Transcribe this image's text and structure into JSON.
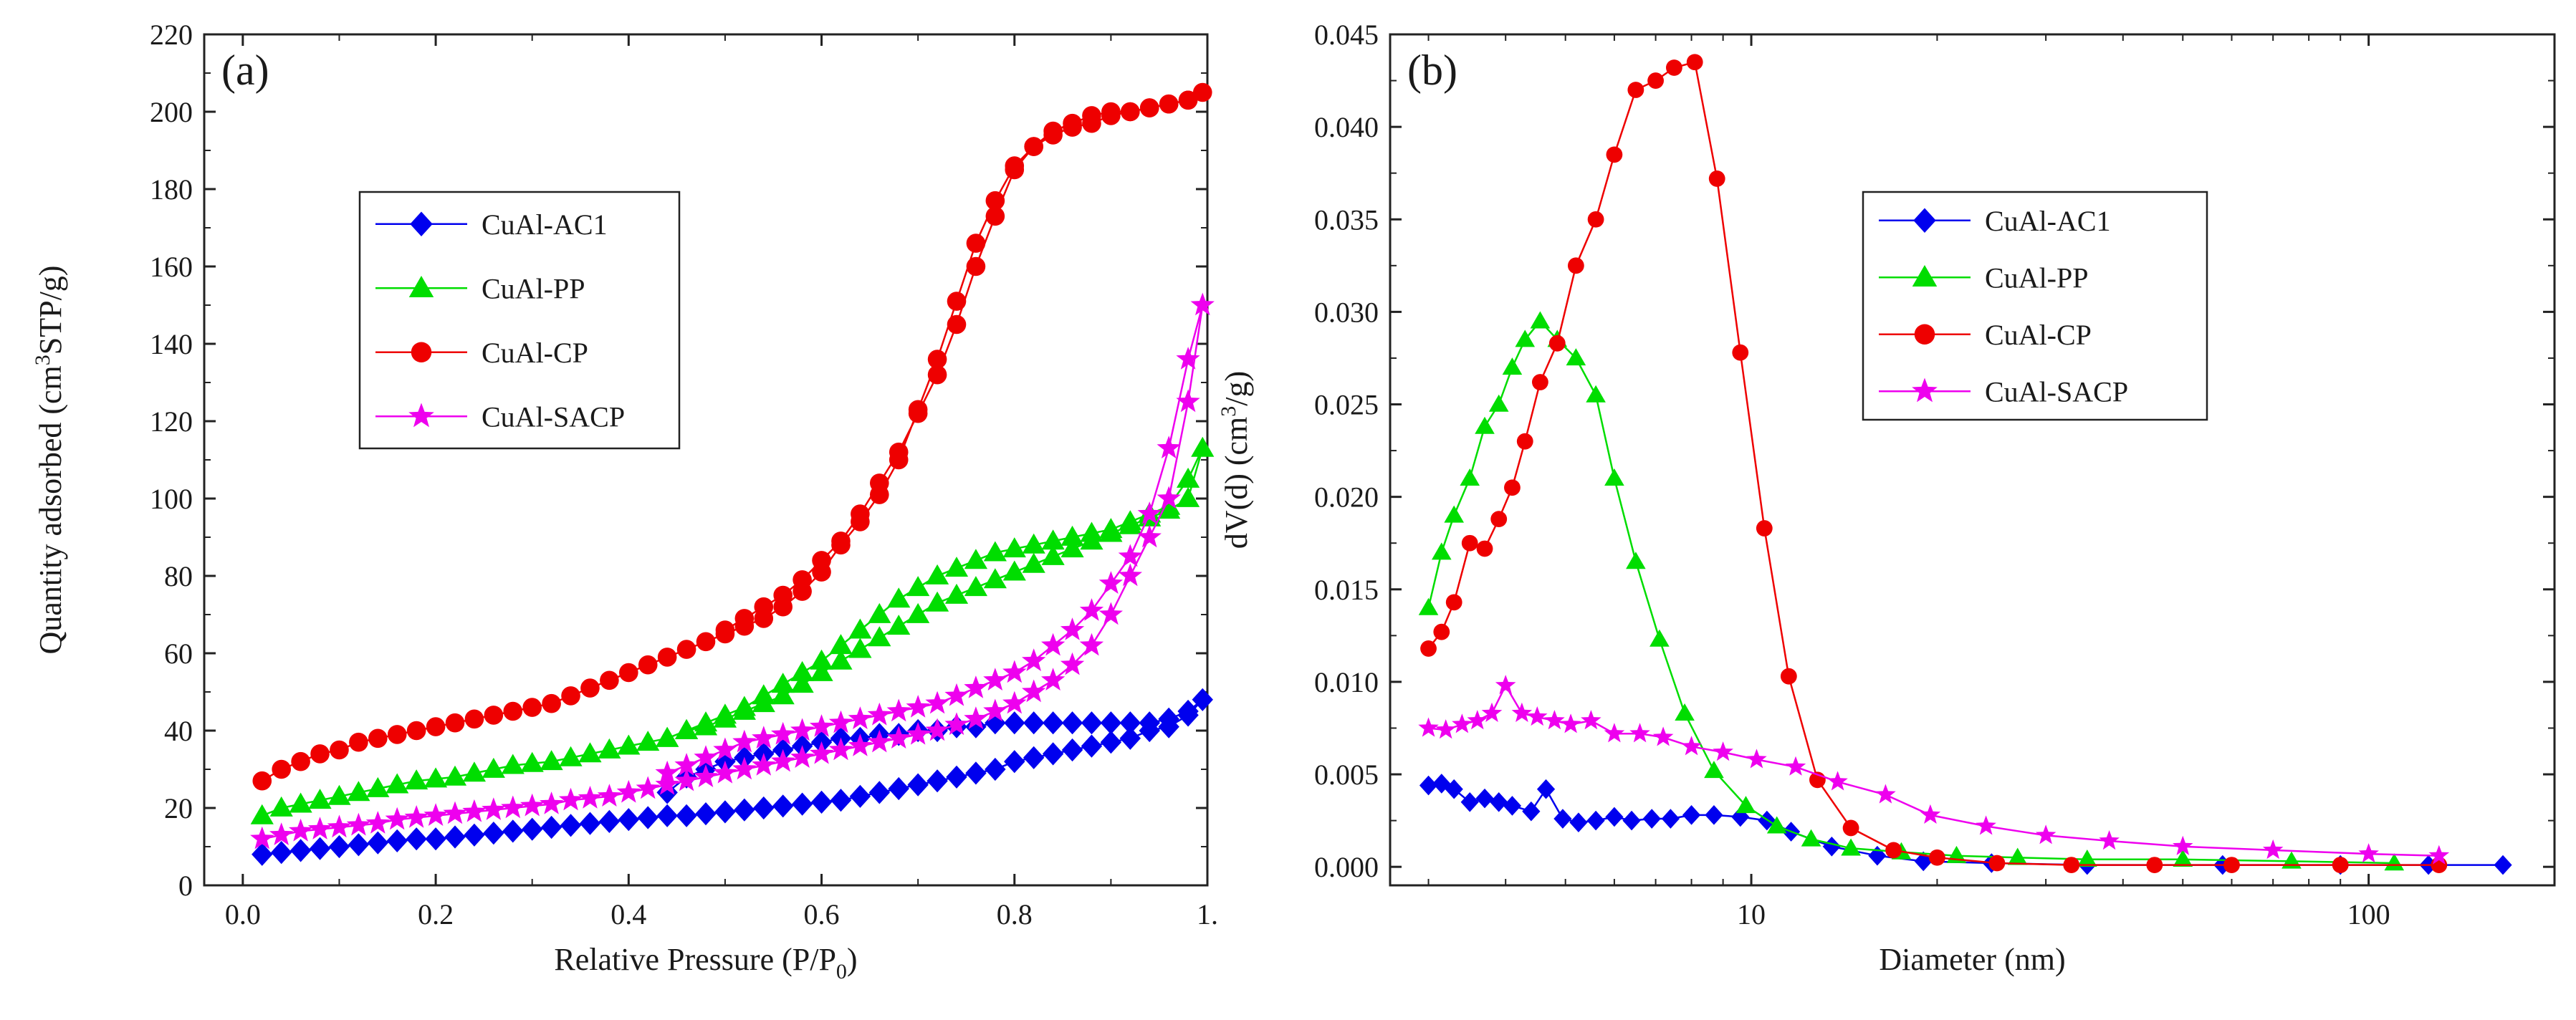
{
  "chart_data": [
    {
      "type": "scatter",
      "panel_label": "(a)",
      "title": "",
      "xlabel": "Relative Pressure (P/P",
      "xlabel_sub": "0",
      "xlabel_end": ")",
      "ylabel": "Quantity adsorbed (cm",
      "ylabel_sup": "3",
      "ylabel_end": "STP/g)",
      "xlim": [
        -0.04,
        1.0
      ],
      "ylim": [
        0,
        220
      ],
      "xticks": [
        0.0,
        0.2,
        0.4,
        0.6,
        0.8,
        1.0
      ],
      "xtick_labels": [
        "0.0",
        "0.2",
        "0.4",
        "0.6",
        "0.8",
        "1."
      ],
      "yticks": [
        0,
        20,
        40,
        60,
        80,
        100,
        120,
        140,
        160,
        180,
        200,
        220
      ],
      "ytick_labels": [
        "0",
        "20",
        "40",
        "60",
        "80",
        "100",
        "120",
        "140",
        "160",
        "180",
        "200",
        "220"
      ],
      "legend_position": "upper-left",
      "series": [
        {
          "name": "CuAl-AC1",
          "color": "#0000ee",
          "marker": "diamond",
          "x": [
            0.02,
            0.04,
            0.06,
            0.08,
            0.1,
            0.12,
            0.14,
            0.16,
            0.18,
            0.2,
            0.22,
            0.24,
            0.26,
            0.28,
            0.3,
            0.32,
            0.34,
            0.36,
            0.38,
            0.4,
            0.42,
            0.44,
            0.46,
            0.48,
            0.5,
            0.52,
            0.54,
            0.56,
            0.58,
            0.6,
            0.62,
            0.64,
            0.66,
            0.68,
            0.7,
            0.72,
            0.74,
            0.76,
            0.78,
            0.8,
            0.82,
            0.84,
            0.86,
            0.88,
            0.9,
            0.92,
            0.94,
            0.96,
            0.98,
            0.995,
            0.98,
            0.96,
            0.94,
            0.92,
            0.9,
            0.88,
            0.86,
            0.84,
            0.82,
            0.8,
            0.78,
            0.76,
            0.74,
            0.72,
            0.7,
            0.68,
            0.66,
            0.64,
            0.62,
            0.6,
            0.58,
            0.56,
            0.54,
            0.52,
            0.5,
            0.48,
            0.46,
            0.44
          ],
          "y": [
            8,
            8.5,
            9,
            9.5,
            10,
            10.5,
            11,
            11.5,
            12,
            12,
            12.5,
            13,
            13.5,
            14,
            14.5,
            15,
            15.5,
            16,
            16.5,
            17,
            17.5,
            18,
            18,
            18.5,
            19,
            19.5,
            20,
            20.5,
            21,
            21.5,
            22,
            23,
            24,
            25,
            26,
            27,
            28,
            29,
            30,
            32,
            33,
            34,
            35,
            36,
            37,
            38,
            40,
            41,
            44,
            48,
            45,
            43,
            42,
            42,
            42,
            42,
            42,
            42,
            42,
            42,
            42,
            41,
            41,
            40,
            40,
            39,
            39,
            38,
            38,
            37,
            36,
            35,
            34,
            33,
            32,
            30,
            28,
            24
          ]
        },
        {
          "name": "CuAl-PP",
          "color": "#00dd00",
          "marker": "triangle",
          "x": [
            0.02,
            0.04,
            0.06,
            0.08,
            0.1,
            0.12,
            0.14,
            0.16,
            0.18,
            0.2,
            0.22,
            0.24,
            0.26,
            0.28,
            0.3,
            0.32,
            0.34,
            0.36,
            0.38,
            0.4,
            0.42,
            0.44,
            0.46,
            0.48,
            0.5,
            0.52,
            0.54,
            0.56,
            0.58,
            0.6,
            0.62,
            0.64,
            0.66,
            0.68,
            0.7,
            0.72,
            0.74,
            0.76,
            0.78,
            0.8,
            0.82,
            0.84,
            0.86,
            0.88,
            0.9,
            0.92,
            0.94,
            0.96,
            0.98,
            0.995,
            0.98,
            0.96,
            0.94,
            0.92,
            0.9,
            0.88,
            0.86,
            0.84,
            0.82,
            0.8,
            0.78,
            0.76,
            0.74,
            0.72,
            0.7,
            0.68,
            0.66,
            0.64,
            0.62,
            0.6,
            0.58,
            0.56,
            0.54,
            0.52,
            0.5,
            0.48,
            0.46,
            0.44
          ],
          "y": [
            18,
            20,
            21,
            22,
            23,
            24,
            25,
            26,
            27,
            27.5,
            28,
            29,
            30,
            31,
            31.5,
            32,
            33,
            34,
            35,
            36,
            37,
            38,
            40,
            41,
            43,
            45,
            47,
            49,
            52,
            55,
            58,
            61,
            64,
            67,
            70,
            73,
            75,
            77,
            79,
            81,
            83,
            85,
            87,
            89,
            91,
            93,
            95,
            97,
            100,
            113,
            105,
            98,
            96,
            94,
            92,
            91,
            90,
            89,
            88,
            87,
            86,
            84,
            82,
            80,
            77,
            74,
            70,
            66,
            62,
            58,
            55,
            52,
            49,
            46,
            44,
            42,
            40,
            38
          ]
        },
        {
          "name": "CuAl-CP",
          "color": "#ee0000",
          "marker": "circle",
          "x": [
            0.02,
            0.04,
            0.06,
            0.08,
            0.1,
            0.12,
            0.14,
            0.16,
            0.18,
            0.2,
            0.22,
            0.24,
            0.26,
            0.28,
            0.3,
            0.32,
            0.34,
            0.36,
            0.38,
            0.4,
            0.42,
            0.44,
            0.46,
            0.48,
            0.5,
            0.52,
            0.54,
            0.56,
            0.58,
            0.6,
            0.62,
            0.64,
            0.66,
            0.68,
            0.7,
            0.72,
            0.74,
            0.76,
            0.78,
            0.8,
            0.82,
            0.84,
            0.86,
            0.88,
            0.9,
            0.92,
            0.94,
            0.96,
            0.98,
            0.995,
            0.98,
            0.96,
            0.94,
            0.92,
            0.9,
            0.88,
            0.86,
            0.84,
            0.82,
            0.8,
            0.78,
            0.76,
            0.74,
            0.72,
            0.7,
            0.68,
            0.66,
            0.64,
            0.62,
            0.6,
            0.58,
            0.56,
            0.54,
            0.52,
            0.5
          ],
          "y": [
            27,
            30,
            32,
            34,
            35,
            37,
            38,
            39,
            40,
            41,
            42,
            43,
            44,
            45,
            46,
            47,
            49,
            51,
            53,
            55,
            57,
            59,
            61,
            63,
            65,
            67,
            69,
            72,
            76,
            81,
            88,
            94,
            101,
            110,
            123,
            136,
            151,
            166,
            177,
            186,
            191,
            195,
            197,
            199,
            200,
            200,
            201,
            202,
            203,
            205,
            203,
            202,
            201,
            200,
            199,
            197,
            196,
            194,
            191,
            185,
            173,
            160,
            145,
            132,
            122,
            112,
            104,
            96,
            89,
            84,
            79,
            75,
            72,
            69,
            66
          ]
        },
        {
          "name": "CuAl-SACP",
          "color": "#ee00ee",
          "marker": "star",
          "x": [
            0.02,
            0.04,
            0.06,
            0.08,
            0.1,
            0.12,
            0.14,
            0.16,
            0.18,
            0.2,
            0.22,
            0.24,
            0.26,
            0.28,
            0.3,
            0.32,
            0.34,
            0.36,
            0.38,
            0.4,
            0.42,
            0.44,
            0.46,
            0.48,
            0.5,
            0.52,
            0.54,
            0.56,
            0.58,
            0.6,
            0.62,
            0.64,
            0.66,
            0.68,
            0.7,
            0.72,
            0.74,
            0.76,
            0.78,
            0.8,
            0.82,
            0.84,
            0.86,
            0.88,
            0.9,
            0.92,
            0.94,
            0.96,
            0.98,
            0.995,
            0.98,
            0.96,
            0.94,
            0.92,
            0.9,
            0.88,
            0.86,
            0.84,
            0.82,
            0.8,
            0.78,
            0.76,
            0.74,
            0.72,
            0.7,
            0.68,
            0.66,
            0.64,
            0.62,
            0.6,
            0.58,
            0.56,
            0.54,
            0.52,
            0.5,
            0.48,
            0.46,
            0.44
          ],
          "y": [
            12,
            13,
            14,
            14.5,
            15,
            15.5,
            16,
            17,
            17.5,
            18,
            18.5,
            19,
            19.5,
            20,
            20.5,
            21,
            22,
            22.5,
            23,
            24,
            25,
            26,
            27,
            28,
            29,
            30,
            31,
            32,
            33,
            34,
            35,
            36,
            37,
            38,
            39,
            40,
            41.5,
            43,
            45,
            47,
            50,
            53,
            57,
            62,
            70,
            80,
            90,
            100,
            125,
            150,
            136,
            113,
            96,
            85,
            78,
            71,
            66,
            62,
            58,
            55,
            53,
            51,
            49,
            47,
            46,
            45,
            44,
            43,
            42,
            41,
            40,
            39,
            38,
            37,
            35,
            33,
            31,
            29
          ]
        }
      ]
    },
    {
      "type": "line",
      "panel_label": "(b)",
      "title": "",
      "xlabel": "Diameter (nm)",
      "ylabel": "dV(d) (cm",
      "ylabel_sup": "3",
      "ylabel_end": "/g)",
      "xscale": "log",
      "xlim": [
        2.6,
        200
      ],
      "ylim": [
        -0.001,
        0.045
      ],
      "xticks": [
        10,
        100
      ],
      "xtick_labels": [
        "10",
        "100"
      ],
      "yticks": [
        0.0,
        0.005,
        0.01,
        0.015,
        0.02,
        0.025,
        0.03,
        0.035,
        0.04,
        0.045
      ],
      "ytick_labels": [
        "0.000",
        "0.005",
        "0.010",
        "0.015",
        "0.020",
        "0.025",
        "0.030",
        "0.035",
        "0.040",
        "0.045"
      ],
      "legend_position": "upper-right",
      "series": [
        {
          "name": "CuAl-AC1",
          "color": "#0000ee",
          "marker": "diamond",
          "x": [
            3.0,
            3.15,
            3.3,
            3.5,
            3.7,
            3.9,
            4.1,
            4.4,
            4.65,
            4.95,
            5.25,
            5.6,
            6.0,
            6.4,
            6.9,
            7.4,
            8.0,
            8.7,
            9.6,
            10.6,
            11.6,
            13.5,
            16.0,
            19.0,
            24.5,
            35.0,
            58.0,
            90.0,
            125.0,
            165.0
          ],
          "y": [
            0.0044,
            0.0045,
            0.0042,
            0.0035,
            0.0037,
            0.0035,
            0.0033,
            0.003,
            0.0042,
            0.0026,
            0.0024,
            0.0025,
            0.0027,
            0.0025,
            0.0026,
            0.0026,
            0.0028,
            0.0028,
            0.0027,
            0.0025,
            0.0019,
            0.0011,
            0.0006,
            0.0003,
            0.0002,
            0.0001,
            0.0001,
            0.0001,
            0.0001,
            0.0001
          ]
        },
        {
          "name": "CuAl-PP",
          "color": "#00dd00",
          "marker": "triangle",
          "x": [
            3.0,
            3.15,
            3.3,
            3.5,
            3.7,
            3.9,
            4.1,
            4.3,
            4.55,
            4.85,
            5.2,
            5.6,
            6.0,
            6.5,
            7.1,
            7.8,
            8.7,
            9.8,
            11.0,
            12.5,
            14.5,
            17.5,
            21.5,
            27.0,
            35.0,
            50.0,
            75.0,
            110.0
          ],
          "y": [
            0.014,
            0.017,
            0.019,
            0.021,
            0.0238,
            0.025,
            0.027,
            0.0285,
            0.0295,
            0.0285,
            0.0275,
            0.0255,
            0.021,
            0.0165,
            0.0123,
            0.0083,
            0.0052,
            0.0033,
            0.0022,
            0.0015,
            0.001,
            0.0008,
            0.0006,
            0.0005,
            0.0004,
            0.0004,
            0.0003,
            0.0002
          ]
        },
        {
          "name": "CuAl-CP",
          "color": "#ee0000",
          "marker": "circle",
          "x": [
            3.0,
            3.15,
            3.3,
            3.5,
            3.7,
            3.9,
            4.1,
            4.3,
            4.55,
            4.85,
            5.2,
            5.6,
            6.0,
            6.5,
            7.0,
            7.5,
            8.1,
            8.8,
            9.6,
            10.5,
            11.5,
            12.8,
            14.5,
            17.0,
            20.0,
            25.0,
            33.0,
            45.0,
            60.0,
            90.0,
            130.0
          ],
          "y": [
            0.0118,
            0.0127,
            0.0143,
            0.0175,
            0.0172,
            0.0188,
            0.0205,
            0.023,
            0.0262,
            0.0283,
            0.0325,
            0.035,
            0.0385,
            0.042,
            0.0425,
            0.0432,
            0.0435,
            0.0372,
            0.0278,
            0.0183,
            0.0103,
            0.0047,
            0.0021,
            0.0009,
            0.0005,
            0.0002,
            0.0001,
            0.0001,
            0.0001,
            0.0001,
            0.0001
          ]
        },
        {
          "name": "CuAl-SACP",
          "color": "#ee00ee",
          "marker": "star",
          "x": [
            3.0,
            3.2,
            3.4,
            3.6,
            3.8,
            4.0,
            4.25,
            4.5,
            4.8,
            5.1,
            5.5,
            6.0,
            6.6,
            7.2,
            8.0,
            9.0,
            10.2,
            11.8,
            13.8,
            16.5,
            19.5,
            24.0,
            30.0,
            38.0,
            50.0,
            70.0,
            100.0,
            130.0
          ],
          "y": [
            0.0075,
            0.0074,
            0.0077,
            0.0079,
            0.0083,
            0.0098,
            0.0083,
            0.0081,
            0.0079,
            0.0077,
            0.0079,
            0.0072,
            0.0072,
            0.007,
            0.0065,
            0.0062,
            0.0058,
            0.0054,
            0.0046,
            0.0039,
            0.0028,
            0.0022,
            0.0017,
            0.0014,
            0.0011,
            0.0009,
            0.0007,
            0.0006
          ]
        }
      ]
    }
  ]
}
